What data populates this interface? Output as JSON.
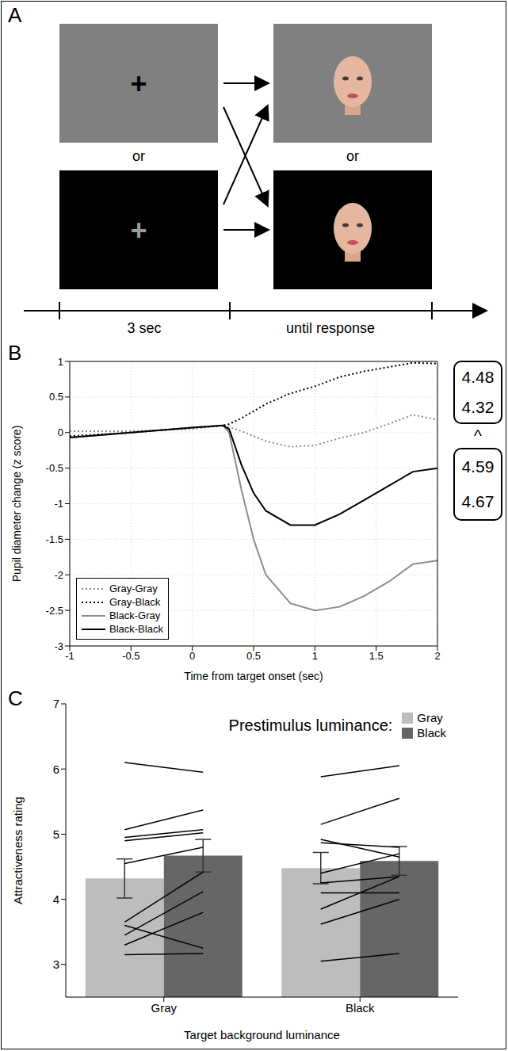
{
  "panel_a": {
    "letter": "A",
    "fixation": "+",
    "or": "or",
    "timeline": [
      "3 sec",
      "until response"
    ]
  },
  "chart_data": [
    {
      "type": "line",
      "panel_label": "B",
      "x_label": "Time from target onset (sec)",
      "y_label": "Pupil diameter change (z score)",
      "x": [
        -1,
        -0.5,
        0,
        0.25,
        0.3,
        0.4,
        0.5,
        0.6,
        0.8,
        1,
        1.2,
        1.4,
        1.6,
        1.8,
        2
      ],
      "xlim": [
        -1,
        2
      ],
      "xticks": [
        -1,
        -0.5,
        0,
        0.5,
        1,
        1.5,
        2
      ],
      "ylim": [
        -3,
        1
      ],
      "yticks": [
        -3,
        -2.5,
        -2,
        -1.5,
        -1,
        -0.5,
        0,
        0.5,
        1
      ],
      "grid": true,
      "legend": "lower left",
      "series": [
        {
          "name": "Gray-Gray",
          "color": "#8c8c8c",
          "line_style": "dotted",
          "values": [
            0.02,
            0.02,
            0.05,
            0.1,
            0.08,
            0.02,
            -0.05,
            -0.12,
            -0.2,
            -0.18,
            -0.08,
            0.0,
            0.12,
            0.25,
            0.18
          ]
        },
        {
          "name": "Gray-Black",
          "color": "#000000",
          "line_style": "dotted",
          "values": [
            -0.05,
            0.0,
            0.07,
            0.1,
            0.12,
            0.2,
            0.3,
            0.4,
            0.55,
            0.65,
            0.78,
            0.86,
            0.92,
            0.98,
            0.97
          ]
        },
        {
          "name": "Black-Gray",
          "color": "#8c8c8c",
          "line_style": "solid",
          "values": [
            -0.07,
            0.0,
            0.07,
            0.1,
            0.0,
            -0.8,
            -1.5,
            -2.0,
            -2.4,
            -2.5,
            -2.45,
            -2.3,
            -2.1,
            -1.85,
            -1.8
          ]
        },
        {
          "name": "Black-Black",
          "color": "#000000",
          "line_style": "solid",
          "values": [
            -0.07,
            0.0,
            0.07,
            0.1,
            0.05,
            -0.45,
            -0.85,
            -1.1,
            -1.3,
            -1.3,
            -1.15,
            -0.95,
            -0.75,
            -0.55,
            -0.5
          ]
        }
      ],
      "annotation": {
        "upper": [
          4.48,
          4.32
        ],
        "symbol": "^",
        "lower": [
          4.59,
          4.67
        ]
      }
    },
    {
      "type": "bar",
      "panel_label": "C",
      "x_label": "Target background luminance",
      "y_label": "Attractiveness rating",
      "legend_title": "Prestimulus luminance:",
      "categories": [
        "Gray",
        "Black"
      ],
      "ylim": [
        2.5,
        7
      ],
      "yticks": [
        3,
        4,
        5,
        6,
        7
      ],
      "grid": false,
      "legend": "upper right",
      "series": [
        {
          "name": "Gray",
          "color": "#bdbdbd",
          "values": [
            4.32,
            4.48
          ],
          "errors": [
            0.3,
            0.24
          ],
          "subjects": [
            [
              6.1,
              5.07,
              4.95,
              4.9,
              4.55,
              3.65,
              3.45,
              3.3,
              3.6,
              3.15
            ],
            [
              5.88,
              5.15,
              4.92,
              4.87,
              4.4,
              4.25,
              4.1,
              3.85,
              3.62,
              3.05
            ]
          ]
        },
        {
          "name": "Black",
          "color": "#666666",
          "values": [
            4.67,
            4.59
          ],
          "errors": [
            0.25,
            0.22
          ],
          "subjects": [
            [
              5.95,
              5.37,
              5.07,
              5.02,
              4.8,
              4.42,
              4.12,
              3.8,
              3.25,
              3.17
            ],
            [
              6.05,
              5.55,
              4.65,
              4.8,
              4.7,
              4.35,
              4.1,
              4.35,
              4.0,
              3.17
            ]
          ]
        }
      ]
    }
  ]
}
